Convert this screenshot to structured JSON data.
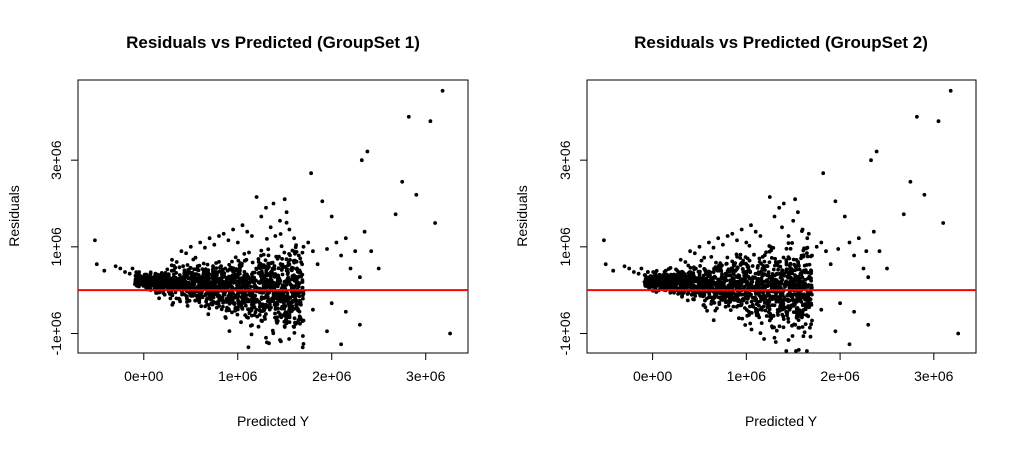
{
  "chart_data": [
    {
      "type": "scatter",
      "title": "Residuals vs Predicted (GroupSet 1)",
      "xlabel": "Predicted Y",
      "ylabel": "Residuals",
      "xlim": [
        -700000,
        3450000
      ],
      "ylim": [
        -1450000,
        4850000
      ],
      "x_ticks": [
        0,
        1000000,
        2000000,
        3000000
      ],
      "x_tick_labels": [
        "0e+00",
        "1e+06",
        "2e+06",
        "3e+06"
      ],
      "y_ticks": [
        -1000000,
        1000000,
        3000000
      ],
      "y_tick_labels": [
        "-1e+06",
        "1e+06",
        "3e+06"
      ],
      "reference_line": {
        "y": 0,
        "color": "#ff0000"
      },
      "point_color": "#000000",
      "grid": false,
      "series": [
        {
          "points": [
            [
              -520000,
              1150000
            ],
            [
              -500000,
              600000
            ],
            [
              -420000,
              450000
            ],
            [
              -300000,
              550000
            ],
            [
              -250000,
              500000
            ],
            [
              -200000,
              420000
            ],
            [
              -150000,
              380000
            ],
            [
              -120000,
              500000
            ],
            [
              -80000,
              350000
            ],
            [
              -50000,
              420000
            ],
            [
              0,
              300000
            ],
            [
              50000,
              250000
            ],
            [
              100000,
              200000
            ],
            [
              150000,
              180000
            ],
            [
              200000,
              350000
            ],
            [
              250000,
              480000
            ],
            [
              300000,
              700000
            ],
            [
              350000,
              650000
            ],
            [
              400000,
              900000
            ],
            [
              450000,
              850000
            ],
            [
              500000,
              1000000
            ],
            [
              550000,
              750000
            ],
            [
              600000,
              1100000
            ],
            [
              650000,
              980000
            ],
            [
              700000,
              1200000
            ],
            [
              750000,
              1050000
            ],
            [
              800000,
              1250000
            ],
            [
              850000,
              1300000
            ],
            [
              900000,
              1150000
            ],
            [
              950000,
              1400000
            ],
            [
              1000000,
              1100000
            ],
            [
              1050000,
              1500000
            ],
            [
              1100000,
              1350000
            ],
            [
              1150000,
              1250000
            ],
            [
              1200000,
              2150000
            ],
            [
              1250000,
              1700000
            ],
            [
              1300000,
              1900000
            ],
            [
              1350000,
              1450000
            ],
            [
              1380000,
              2000000
            ],
            [
              1400000,
              1250000
            ],
            [
              1450000,
              1600000
            ],
            [
              1500000,
              2100000
            ],
            [
              1520000,
              1800000
            ],
            [
              1550000,
              1400000
            ],
            [
              1600000,
              1200000
            ],
            [
              1650000,
              800000
            ],
            [
              1700000,
              1000000
            ],
            [
              1750000,
              1100000
            ],
            [
              1780000,
              2700000
            ],
            [
              1800000,
              900000
            ],
            [
              1850000,
              600000
            ],
            [
              1900000,
              2050000
            ],
            [
              1950000,
              950000
            ],
            [
              2000000,
              1700000
            ],
            [
              2050000,
              1100000
            ],
            [
              2100000,
              800000
            ],
            [
              2150000,
              1200000
            ],
            [
              2200000,
              500000
            ],
            [
              2250000,
              900000
            ],
            [
              2300000,
              300000
            ],
            [
              2320000,
              3000000
            ],
            [
              2350000,
              1350000
            ],
            [
              2380000,
              3200000
            ],
            [
              2420000,
              900000
            ],
            [
              2500000,
              500000
            ],
            [
              2680000,
              1750000
            ],
            [
              2750000,
              2500000
            ],
            [
              2820000,
              4000000
            ],
            [
              2900000,
              2200000
            ],
            [
              3050000,
              3900000
            ],
            [
              3100000,
              1550000
            ],
            [
              3180000,
              4600000
            ],
            [
              3260000,
              -1000000
            ],
            [
              1300000,
              -1100000
            ],
            [
              1450000,
              -1150000
            ],
            [
              2100000,
              -1250000
            ],
            [
              1950000,
              -950000
            ],
            [
              1600000,
              -850000
            ],
            [
              1700000,
              -700000
            ],
            [
              2300000,
              -800000
            ],
            [
              2150000,
              -500000
            ],
            [
              1800000,
              -450000
            ],
            [
              1550000,
              -600000
            ],
            [
              1250000,
              -700000
            ],
            [
              2000000,
              -300000
            ]
          ],
          "dense_band": {
            "count": 1400,
            "x_range": [
              -100000,
              1700000
            ],
            "center_at_x0": 200000,
            "center_slope": -0.15,
            "spread_at_x0": 150000,
            "spread_slope": 0.45,
            "seed": 11
          }
        }
      ]
    },
    {
      "type": "scatter",
      "title": "Residuals vs Predicted (GroupSet 2)",
      "xlabel": "Predicted Y",
      "ylabel": "Residuals",
      "xlim": [
        -700000,
        3450000
      ],
      "ylim": [
        -1450000,
        4850000
      ],
      "x_ticks": [
        0,
        1000000,
        2000000,
        3000000
      ],
      "x_tick_labels": [
        "0e+00",
        "1e+06",
        "2e+06",
        "3e+06"
      ],
      "y_ticks": [
        -1000000,
        1000000,
        3000000
      ],
      "y_tick_labels": [
        "-1e+06",
        "1e+06",
        "3e+06"
      ],
      "reference_line": {
        "y": 0,
        "color": "#ff0000"
      },
      "point_color": "#000000",
      "grid": false,
      "series": [
        {
          "points": [
            [
              -520000,
              1150000
            ],
            [
              -500000,
              600000
            ],
            [
              -420000,
              450000
            ],
            [
              -300000,
              550000
            ],
            [
              -250000,
              500000
            ],
            [
              -200000,
              420000
            ],
            [
              -150000,
              380000
            ],
            [
              -120000,
              500000
            ],
            [
              -80000,
              350000
            ],
            [
              -50000,
              420000
            ],
            [
              0,
              300000
            ],
            [
              50000,
              250000
            ],
            [
              100000,
              200000
            ],
            [
              150000,
              180000
            ],
            [
              200000,
              350000
            ],
            [
              250000,
              480000
            ],
            [
              300000,
              700000
            ],
            [
              350000,
              650000
            ],
            [
              400000,
              900000
            ],
            [
              450000,
              850000
            ],
            [
              500000,
              1000000
            ],
            [
              550000,
              750000
            ],
            [
              600000,
              1100000
            ],
            [
              650000,
              980000
            ],
            [
              700000,
              1200000
            ],
            [
              750000,
              1050000
            ],
            [
              800000,
              1250000
            ],
            [
              850000,
              1300000
            ],
            [
              900000,
              1150000
            ],
            [
              950000,
              1400000
            ],
            [
              1000000,
              1100000
            ],
            [
              1050000,
              1500000
            ],
            [
              1100000,
              1350000
            ],
            [
              1150000,
              1250000
            ],
            [
              1250000,
              2150000
            ],
            [
              1300000,
              1700000
            ],
            [
              1350000,
              1900000
            ],
            [
              1380000,
              1450000
            ],
            [
              1400000,
              2000000
            ],
            [
              1450000,
              1250000
            ],
            [
              1500000,
              1600000
            ],
            [
              1520000,
              2100000
            ],
            [
              1550000,
              1800000
            ],
            [
              1600000,
              1400000
            ],
            [
              1650000,
              1200000
            ],
            [
              1700000,
              800000
            ],
            [
              1750000,
              1000000
            ],
            [
              1800000,
              1100000
            ],
            [
              1820000,
              2700000
            ],
            [
              1850000,
              900000
            ],
            [
              1900000,
              600000
            ],
            [
              1950000,
              2050000
            ],
            [
              1980000,
              950000
            ],
            [
              2050000,
              1700000
            ],
            [
              2100000,
              1100000
            ],
            [
              2150000,
              800000
            ],
            [
              2200000,
              1200000
            ],
            [
              2250000,
              500000
            ],
            [
              2280000,
              900000
            ],
            [
              2300000,
              300000
            ],
            [
              2330000,
              3000000
            ],
            [
              2360000,
              1350000
            ],
            [
              2390000,
              3200000
            ],
            [
              2420000,
              900000
            ],
            [
              2500000,
              500000
            ],
            [
              2680000,
              1750000
            ],
            [
              2750000,
              2500000
            ],
            [
              2820000,
              4000000
            ],
            [
              2900000,
              2200000
            ],
            [
              3050000,
              3900000
            ],
            [
              3100000,
              1550000
            ],
            [
              3180000,
              4600000
            ],
            [
              3260000,
              -1000000
            ],
            [
              1300000,
              -1100000
            ],
            [
              1450000,
              -1150000
            ],
            [
              2100000,
              -1250000
            ],
            [
              1950000,
              -950000
            ],
            [
              1600000,
              -850000
            ],
            [
              1700000,
              -700000
            ],
            [
              2300000,
              -800000
            ],
            [
              2150000,
              -500000
            ],
            [
              1800000,
              -450000
            ],
            [
              1550000,
              -600000
            ],
            [
              1250000,
              -700000
            ],
            [
              2000000,
              -300000
            ]
          ],
          "dense_band": {
            "count": 1400,
            "x_range": [
              -100000,
              1700000
            ],
            "center_at_x0": 200000,
            "center_slope": -0.15,
            "spread_at_x0": 150000,
            "spread_slope": 0.45,
            "seed": 23
          }
        }
      ]
    }
  ]
}
